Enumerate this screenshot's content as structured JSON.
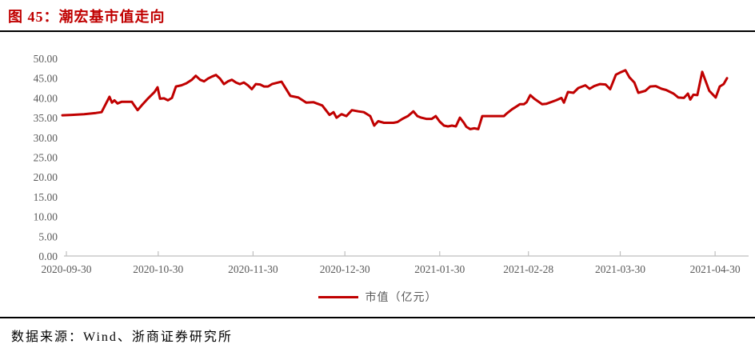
{
  "title": "图 45：潮宏基市值走向",
  "legend": {
    "label": "市值（亿元）"
  },
  "footer": {
    "source_text": "数据来源：Wind、浙商证券研究所"
  },
  "colors": {
    "accent_red": "#C00000",
    "axis_text": "#595959",
    "axis_line": "#BFBFBF",
    "rule_black": "#000000",
    "background": "#FFFFFF"
  },
  "chart_data": {
    "type": "line",
    "title": "潮宏基市值走向",
    "xlabel": "",
    "ylabel": "",
    "ylim": [
      0,
      50
    ],
    "x_unit": "days_since_2020-09-30",
    "grid": false,
    "legend_position": "bottom-center",
    "y_ticks": [
      {
        "value": 0,
        "label": "0.00"
      },
      {
        "value": 5,
        "label": "5.00"
      },
      {
        "value": 10,
        "label": "10.00"
      },
      {
        "value": 15,
        "label": "15.00"
      },
      {
        "value": 20,
        "label": "20.00"
      },
      {
        "value": 25,
        "label": "25.00"
      },
      {
        "value": 30,
        "label": "30.00"
      },
      {
        "value": 35,
        "label": "35.00"
      },
      {
        "value": 40,
        "label": "40.00"
      },
      {
        "value": 45,
        "label": "45.00"
      },
      {
        "value": 50,
        "label": "50.00"
      }
    ],
    "x_ticks": [
      {
        "day": 0,
        "label": "2020-09-30"
      },
      {
        "day": 30,
        "label": "2020-10-30"
      },
      {
        "day": 61,
        "label": "2020-11-30"
      },
      {
        "day": 91,
        "label": "2020-12-30"
      },
      {
        "day": 122,
        "label": "2021-01-30"
      },
      {
        "day": 151,
        "label": "2021-02-28"
      },
      {
        "day": 181,
        "label": "2021-03-30"
      },
      {
        "day": 212,
        "label": "2021-04-30"
      }
    ],
    "series": [
      {
        "name": "市值（亿元）",
        "color": "#C00000",
        "points": [
          [
            -1.3,
            35.6
          ],
          [
            1.8,
            35.7
          ],
          [
            5.8,
            35.9
          ],
          [
            9.7,
            36.2
          ],
          [
            11.5,
            36.4
          ],
          [
            14.1,
            40.3
          ],
          [
            14.9,
            38.8
          ],
          [
            15.7,
            39.4
          ],
          [
            16.7,
            38.6
          ],
          [
            18,
            39
          ],
          [
            21.4,
            39
          ],
          [
            22.2,
            38.1
          ],
          [
            23.3,
            36.9
          ],
          [
            24.6,
            38.1
          ],
          [
            26.7,
            39.9
          ],
          [
            28.8,
            41.5
          ],
          [
            29.8,
            42.7
          ],
          [
            30.6,
            39.8
          ],
          [
            31.9,
            39.9
          ],
          [
            33.2,
            39.4
          ],
          [
            34.5,
            40
          ],
          [
            35.8,
            42.9
          ],
          [
            37.6,
            43.2
          ],
          [
            39.2,
            43.7
          ],
          [
            41,
            44.6
          ],
          [
            42.3,
            45.6
          ],
          [
            43.7,
            44.6
          ],
          [
            45,
            44.2
          ],
          [
            46.3,
            44.9
          ],
          [
            47.6,
            45.4
          ],
          [
            48.9,
            45.8
          ],
          [
            50.2,
            44.9
          ],
          [
            51.5,
            43.5
          ],
          [
            52.8,
            44.2
          ],
          [
            54.1,
            44.6
          ],
          [
            55.4,
            43.9
          ],
          [
            56.7,
            43.5
          ],
          [
            58,
            43.9
          ],
          [
            59.3,
            43.2
          ],
          [
            60.6,
            42.2
          ],
          [
            61.9,
            43.5
          ],
          [
            63.3,
            43.4
          ],
          [
            64.6,
            42.9
          ],
          [
            65.9,
            42.9
          ],
          [
            67.2,
            43.5
          ],
          [
            70.3,
            44.1
          ],
          [
            73.2,
            40.5
          ],
          [
            75.8,
            40.1
          ],
          [
            78.4,
            38.8
          ],
          [
            80.8,
            38.9
          ],
          [
            83.6,
            38.1
          ],
          [
            86,
            35.7
          ],
          [
            87.3,
            36.4
          ],
          [
            88.3,
            35
          ],
          [
            89.9,
            35.9
          ],
          [
            91.5,
            35.4
          ],
          [
            93.3,
            36.9
          ],
          [
            95.4,
            36.6
          ],
          [
            97.2,
            36.4
          ],
          [
            99.3,
            35.4
          ],
          [
            100.6,
            33
          ],
          [
            101.9,
            34.1
          ],
          [
            103.8,
            33.7
          ],
          [
            106.9,
            33.7
          ],
          [
            108.2,
            33.9
          ],
          [
            109.8,
            34.7
          ],
          [
            111.6,
            35.4
          ],
          [
            113.4,
            36.6
          ],
          [
            114.7,
            35.4
          ],
          [
            116,
            35
          ],
          [
            117.6,
            34.7
          ],
          [
            119.4,
            34.7
          ],
          [
            120.7,
            35.4
          ],
          [
            122,
            34
          ],
          [
            123.4,
            33
          ],
          [
            124.7,
            32.8
          ],
          [
            126,
            33
          ],
          [
            127.3,
            32.8
          ],
          [
            128.6,
            35
          ],
          [
            129.9,
            33.7
          ],
          [
            130.7,
            32.7
          ],
          [
            132,
            32.1
          ],
          [
            133.3,
            32.3
          ],
          [
            134.6,
            32.1
          ],
          [
            135.9,
            35.4
          ],
          [
            143,
            35.4
          ],
          [
            143.8,
            36
          ],
          [
            145.6,
            37.1
          ],
          [
            147.4,
            38
          ],
          [
            148.2,
            38.4
          ],
          [
            149.5,
            38.4
          ],
          [
            150.4,
            38.9
          ],
          [
            151.6,
            40.7
          ],
          [
            152.9,
            39.8
          ],
          [
            155.5,
            38.4
          ],
          [
            156.8,
            38.5
          ],
          [
            160,
            39.4
          ],
          [
            161.8,
            40
          ],
          [
            162.6,
            38.8
          ],
          [
            163.9,
            41.5
          ],
          [
            165.7,
            41.3
          ],
          [
            167.3,
            42.5
          ],
          [
            169.6,
            43.2
          ],
          [
            171,
            42.3
          ],
          [
            172.5,
            43
          ],
          [
            174.4,
            43.5
          ],
          [
            176.2,
            43.4
          ],
          [
            177.7,
            42.2
          ],
          [
            179.6,
            45.9
          ],
          [
            180.9,
            46.4
          ],
          [
            182.7,
            47
          ],
          [
            184,
            45.2
          ],
          [
            185.6,
            43.9
          ],
          [
            186.9,
            41.3
          ],
          [
            189.2,
            41.8
          ],
          [
            190.8,
            42.9
          ],
          [
            192.6,
            43
          ],
          [
            194.5,
            42.3
          ],
          [
            196,
            42
          ],
          [
            198.4,
            41.1
          ],
          [
            200,
            40.1
          ],
          [
            201.8,
            40
          ],
          [
            203.1,
            41.1
          ],
          [
            203.9,
            39.6
          ],
          [
            204.9,
            40.8
          ],
          [
            206.2,
            40.7
          ],
          [
            207.8,
            46.6
          ],
          [
            210.1,
            41.8
          ],
          [
            212.2,
            40.1
          ],
          [
            213.5,
            42.9
          ],
          [
            214.8,
            43.5
          ],
          [
            215.9,
            45
          ]
        ]
      }
    ]
  }
}
